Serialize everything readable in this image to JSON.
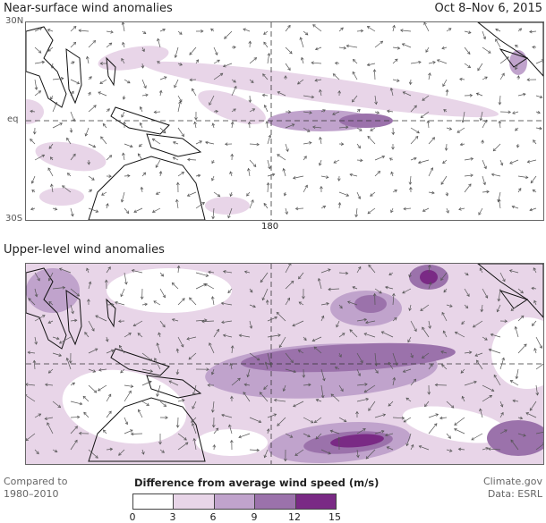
{
  "top_panel": {
    "title": "Near-surface wind anomalies",
    "date_range": "Oct 8–Nov 6, 2015",
    "lat_labels": [
      "30N",
      "eq",
      "30S"
    ],
    "lon_label": "180"
  },
  "bottom_panel": {
    "title": "Upper-level wind anomalies"
  },
  "footer": {
    "baseline_line1": "Compared to",
    "baseline_line2": "1980–2010",
    "credit_line1": "Climate.gov",
    "credit_line2": "Data: ESRL"
  },
  "legend": {
    "title": "Difference from average wind speed (m/s)",
    "ticks": [
      "0",
      "3",
      "6",
      "9",
      "12",
      "15"
    ],
    "colors": [
      "#ffffff",
      "#e8d5e8",
      "#c0a3cc",
      "#9b72ab",
      "#7a2a85"
    ]
  }
}
